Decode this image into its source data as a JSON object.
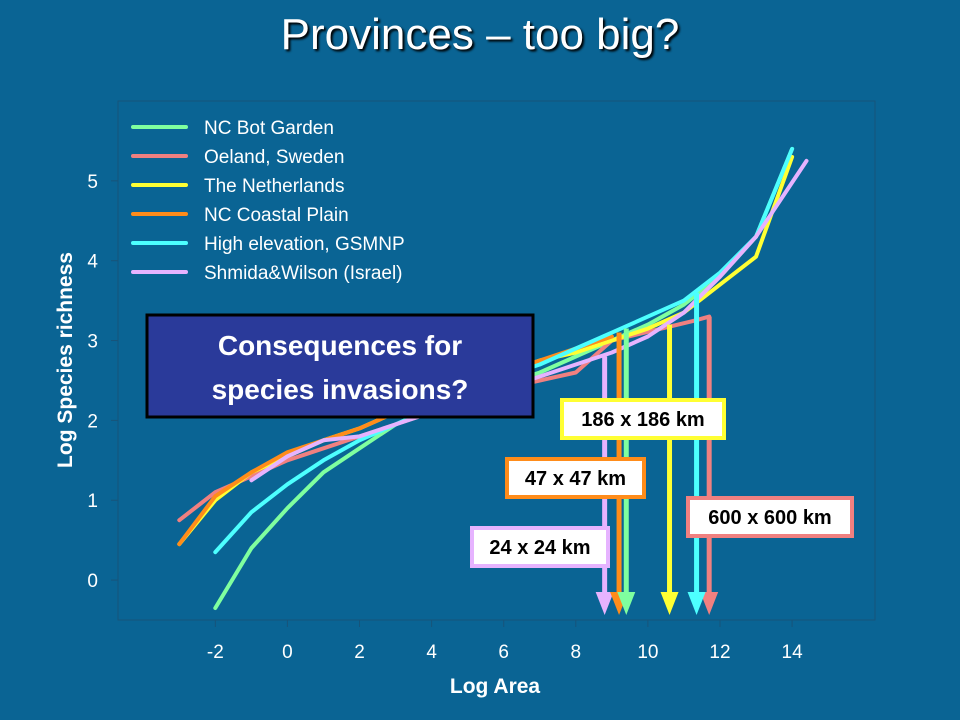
{
  "slide": {
    "title": "Provinces – too big?"
  },
  "callout": {
    "line1": "Consequences for",
    "line2": "species invasions?"
  },
  "chart_data": {
    "type": "line",
    "title": "",
    "xlabel": "Log Area",
    "ylabel": "Log Species richness",
    "xlim": [
      -4.7,
      16.3
    ],
    "ylim": [
      -0.5,
      6.0
    ],
    "xticks": [
      -2,
      0,
      2,
      4,
      6,
      8,
      10,
      12,
      14
    ],
    "yticks": [
      0,
      1,
      2,
      3,
      4,
      5
    ],
    "grid": false,
    "legend_position": "top-left",
    "series": [
      {
        "name": "NC Bot Garden",
        "color": "#7fff9f",
        "x": [
          -2,
          -1,
          0,
          1,
          2,
          3,
          4,
          5,
          6,
          7,
          8,
          9,
          10,
          11,
          12,
          13,
          14
        ],
        "y": [
          -0.35,
          0.4,
          0.9,
          1.35,
          1.65,
          1.95,
          2.15,
          2.3,
          2.45,
          2.6,
          2.8,
          3.0,
          3.2,
          3.45,
          3.8,
          4.3,
          5.4
        ]
      },
      {
        "name": "Oeland, Sweden",
        "color": "#f08080",
        "x": [
          -3,
          -2,
          -1,
          0,
          1,
          2,
          3,
          4,
          5,
          6,
          7,
          8,
          9,
          11.3,
          11.7
        ],
        "y": [
          0.75,
          1.1,
          1.3,
          1.5,
          1.65,
          1.8,
          1.95,
          2.1,
          2.25,
          2.4,
          2.5,
          2.6,
          3.0,
          3.25,
          3.3
        ]
      },
      {
        "name": "The Netherlands",
        "color": "#ffff33",
        "x": [
          -3,
          -2,
          -1,
          0,
          1,
          2,
          3,
          4,
          5,
          6,
          7,
          8,
          9,
          10,
          11,
          12,
          13,
          14
        ],
        "y": [
          0.45,
          1.0,
          1.35,
          1.55,
          1.75,
          1.9,
          2.1,
          2.3,
          2.45,
          2.6,
          2.75,
          2.85,
          3.0,
          3.15,
          3.35,
          3.7,
          4.05,
          5.3
        ]
      },
      {
        "name": "NC Coastal Plain",
        "color": "#ff8c1a",
        "x": [
          -3,
          -2,
          -1,
          0,
          1,
          2,
          3,
          4,
          5,
          6,
          7,
          8,
          9
        ],
        "y": [
          0.45,
          1.05,
          1.35,
          1.6,
          1.75,
          1.9,
          2.1,
          2.3,
          2.45,
          2.6,
          2.75,
          2.9,
          3.05
        ]
      },
      {
        "name": "High elevation, GSMNP",
        "color": "#4dffff",
        "x": [
          -2,
          -1,
          0,
          1,
          2,
          3,
          4,
          5,
          6,
          7,
          8,
          9,
          10,
          11,
          12,
          13,
          14
        ],
        "y": [
          0.35,
          0.85,
          1.2,
          1.5,
          1.75,
          1.95,
          2.15,
          2.35,
          2.55,
          2.7,
          2.9,
          3.1,
          3.3,
          3.5,
          3.85,
          4.3,
          5.4
        ]
      },
      {
        "name": "Shmida&Wilson (Israel)",
        "color": "#e6b3ff",
        "x": [
          -1,
          0,
          1,
          2,
          3,
          4,
          5,
          6,
          7,
          8,
          9,
          10,
          11,
          12,
          13,
          14.4
        ],
        "y": [
          1.25,
          1.55,
          1.75,
          1.8,
          1.95,
          2.1,
          2.25,
          2.4,
          2.55,
          2.7,
          2.85,
          3.05,
          3.35,
          3.8,
          4.3,
          5.25
        ]
      }
    ],
    "annotations": [
      {
        "label": "24 x 24 km",
        "color": "#e6b3ff",
        "x": 8.8,
        "y_top": 2.8
      },
      {
        "label": "47 x 47 km",
        "color": "#ff8c1a",
        "x": 9.2,
        "y_top": 3.1
      },
      {
        "label": "186 x 186 km",
        "color": "#ffff33",
        "x": 10.6,
        "y_top": 3.2
      },
      {
        "label": "600 x 600 km",
        "color": "#f08080",
        "x": 11.7,
        "y_top": 3.3
      },
      {
        "label": "",
        "color": "#7fff9f",
        "x": 9.4,
        "y_top": 3.15
      },
      {
        "label": "",
        "color": "#4dffff",
        "x": 11.35,
        "y_top": 3.6
      }
    ]
  }
}
